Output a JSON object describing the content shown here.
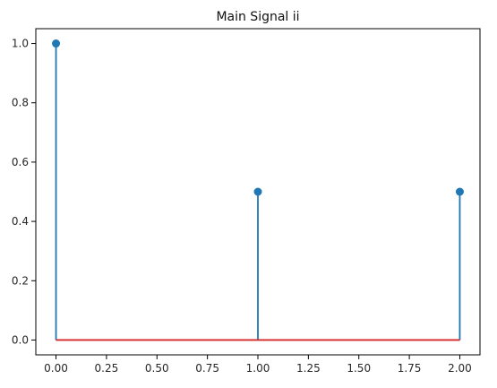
{
  "chart_data": {
    "type": "stem",
    "title": "Main Signal ii",
    "xlabel": "",
    "ylabel": "",
    "x": [
      0,
      1,
      2
    ],
    "y": [
      1.0,
      0.5,
      0.5
    ],
    "xlim": [
      -0.1,
      2.1
    ],
    "ylim": [
      -0.05,
      1.05
    ],
    "x_ticks": [
      0.0,
      0.25,
      0.5,
      0.75,
      1.0,
      1.25,
      1.5,
      1.75,
      2.0
    ],
    "x_tick_labels": [
      "0.00",
      "0.25",
      "0.50",
      "0.75",
      "1.00",
      "1.25",
      "1.50",
      "1.75",
      "2.00"
    ],
    "y_ticks": [
      0.0,
      0.2,
      0.4,
      0.6,
      0.8,
      1.0
    ],
    "y_tick_labels": [
      "0.0",
      "0.2",
      "0.4",
      "0.6",
      "0.8",
      "1.0"
    ],
    "grid": false,
    "baseline": 0,
    "colors": {
      "stem": "#1f77b4",
      "marker": "#1f77b4",
      "baseline": "#d62728",
      "axes": "#000000",
      "text": "#262626"
    }
  }
}
